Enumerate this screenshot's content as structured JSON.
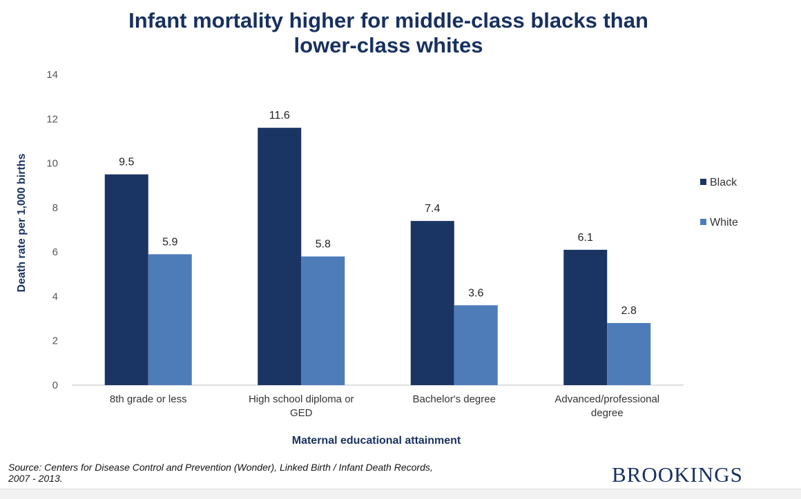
{
  "title_line1": "Infant mortality higher for middle-class blacks than",
  "title_line2": "lower-class whites",
  "source_line1": "Source: Centers for Disease Control and Prevention (Wonder), Linked Birth / Infant Death Records,",
  "source_line2": "2007 - 2013.",
  "brand": "BROOKINGS",
  "colors": {
    "title": "#17305f",
    "black_series": "#1a3563",
    "white_series": "#4e7cb8"
  },
  "chart_data": {
    "type": "bar",
    "categories": [
      [
        "8th grade or less"
      ],
      [
        "High school diploma or",
        "GED"
      ],
      [
        "Bachelor's degree"
      ],
      [
        "Advanced/professional",
        "degree"
      ]
    ],
    "series": [
      {
        "name": "Black",
        "values": [
          9.5,
          11.6,
          7.4,
          6.1
        ],
        "labels": [
          "9.5",
          "11.6",
          "7.4",
          "6.1"
        ],
        "color": "#1a3563"
      },
      {
        "name": "White",
        "values": [
          5.9,
          5.8,
          3.6,
          2.8
        ],
        "labels": [
          "5.9",
          "5.8",
          "3.6",
          "2.8"
        ],
        "color": "#4e7cb8"
      }
    ],
    "ylim": [
      0,
      14
    ],
    "yticks": [
      "0",
      "2",
      "4",
      "6",
      "8",
      "10",
      "12",
      "14"
    ],
    "xlabel": "Maternal educational attainment",
    "ylabel": "Death rate per 1,000 births",
    "legend_position": "right",
    "grid": false
  }
}
